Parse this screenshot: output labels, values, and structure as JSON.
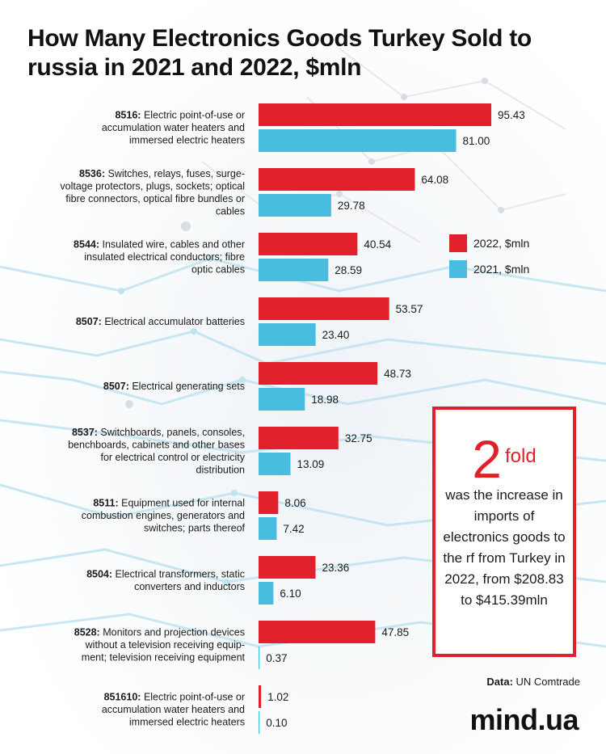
{
  "title": "How Many Electronics Goods Turkey Sold to russia in 2021 and 2022, $mln",
  "colors": {
    "y2022": "#e0202a",
    "y2021": "#49bde0",
    "accent": "#e0202a"
  },
  "legend": {
    "items": [
      {
        "label": "2022, $mln",
        "color": "#e0202a"
      },
      {
        "label": "2021, $mln",
        "color": "#49bde0"
      }
    ]
  },
  "callout": {
    "number": "2",
    "unit": "fold",
    "text": "was the increase in imports of electronics goods to the rf from Turkey in 2022, from $208.83 to $415.39mln"
  },
  "source": {
    "prefix": "Data:",
    "name": "UN Comtrade"
  },
  "brand": "mind.ua",
  "chart_data": {
    "type": "bar",
    "orientation": "horizontal",
    "categories": [
      {
        "code": "8516:",
        "lines": [
          "Electric point-of-use or",
          "accumulation water heaters and",
          "immersed electric heaters"
        ]
      },
      {
        "code": "8536:",
        "lines": [
          "Switches, relays, fuses, surge-",
          "voltage protectors, plugs, sockets; optical",
          "fibre connectors, optical fibre bundles or",
          "cables"
        ]
      },
      {
        "code": "8544:",
        "lines": [
          "Insulated wire, cables and other",
          "insulated electrical conductors; fibre",
          "optic cables"
        ]
      },
      {
        "code": "8507:",
        "lines": [
          "Electrical accumulator batteries"
        ]
      },
      {
        "code": "8507:",
        "lines": [
          "Electrical generating sets"
        ]
      },
      {
        "code": "8537:",
        "lines": [
          "Switchboards, panels, consoles,",
          "benchboards, cabinets and other bases",
          "for electrical control or electricity",
          "distribution"
        ]
      },
      {
        "code": "8511:",
        "lines": [
          "Equipment used for internal",
          "combustion engines, generators and",
          "switches; parts thereof"
        ]
      },
      {
        "code": "8504:",
        "lines": [
          "Electrical transformers, static",
          "converters and inductors"
        ]
      },
      {
        "code": "8528:",
        "lines": [
          "Monitors and projection devices",
          "without a television receiving equip-",
          "ment; television receiving equipment"
        ]
      },
      {
        "code": "851610:",
        "lines": [
          "Electric point-of-use or",
          "accumulation water heaters and",
          "immersed electric heaters"
        ]
      }
    ],
    "series": [
      {
        "name": "2022, $mln",
        "color": "#e0202a",
        "values": [
          95.43,
          64.08,
          40.54,
          53.57,
          48.73,
          32.75,
          8.06,
          23.36,
          47.85,
          1.02
        ]
      },
      {
        "name": "2021, $mln",
        "color": "#49bde0",
        "values": [
          81.0,
          29.78,
          28.59,
          23.4,
          18.98,
          13.09,
          7.42,
          6.1,
          0.37,
          0.1
        ]
      }
    ],
    "value_labels": [
      [
        "95.43",
        "64.08",
        "40.54",
        "53.57",
        "48.73",
        "32.75",
        "8.06",
        "23.36",
        "47.85",
        "1.02"
      ],
      [
        "81.00",
        "29.78",
        "28.59",
        "23.40",
        "18.98",
        "13.09",
        "7.42",
        "6.10",
        "0.37",
        "0.10"
      ]
    ],
    "xlim": [
      0,
      100
    ],
    "grid": false,
    "legend_position": "right"
  }
}
